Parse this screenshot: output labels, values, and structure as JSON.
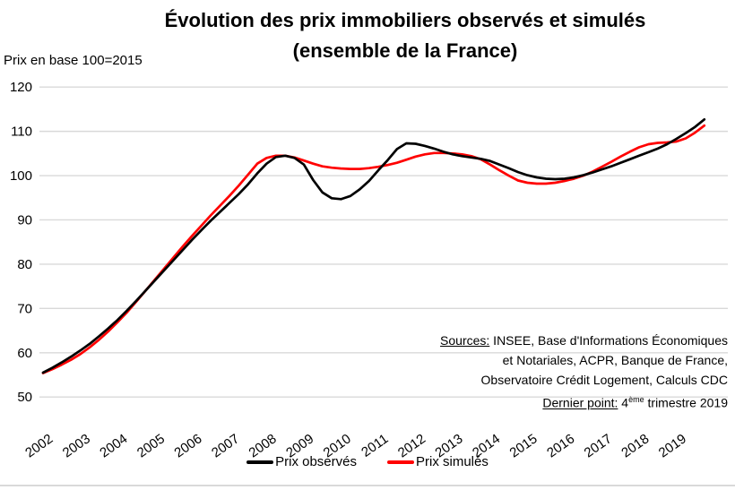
{
  "title": {
    "line1": "Évolution des prix immobiliers observés et simulés",
    "line2": "(ensemble de la France)"
  },
  "y_axis_note": "Prix en base 100=2015",
  "sources": {
    "label": "Sources:",
    "line1_rest": " INSEE, Base d'Informations Économiques",
    "line2": "et Notariales, ACPR, Banque de France,",
    "line3": "Observatoire Crédit Logement, Calculs CDC",
    "dernier_label": "Dernier point:",
    "dernier_num": " 4",
    "dernier_sup": "ème",
    "dernier_rest": " trimestre 2019"
  },
  "legend": [
    {
      "label": "Prix observés",
      "color": "#000000"
    },
    {
      "label": "Prix simulés",
      "color": "#FF0000"
    }
  ],
  "colors": {
    "grid": "#D9D9D9",
    "background": "#FFFFFF",
    "bottom_strip": "#D9D9D9",
    "observed": "#000000",
    "simulated": "#FF0000"
  },
  "chart_data": {
    "type": "line",
    "title": "Évolution des prix immobiliers observés et simulés (ensemble de la France)",
    "ylabel": "Prix en base 100=2015",
    "xlabel": "",
    "grid": "horizontal",
    "legend_position": "bottom",
    "ylim": [
      50,
      120
    ],
    "y_ticks": [
      50,
      60,
      70,
      80,
      90,
      100,
      110,
      120
    ],
    "x_tick_labels": [
      "2002",
      "2003",
      "2004",
      "2005",
      "2006",
      "2007",
      "2008",
      "2009",
      "2010",
      "2011",
      "2012",
      "2013",
      "2014",
      "2015",
      "2016",
      "2017",
      "2018",
      "2019"
    ],
    "x_frequency": "quarterly",
    "x_start": "2002-Q1",
    "x_end": "2019-Q4",
    "series": [
      {
        "name": "Prix observés",
        "color": "#000000",
        "values": [
          55.5,
          56.6,
          57.8,
          59.1,
          60.5,
          62.0,
          63.7,
          65.5,
          67.4,
          69.5,
          71.7,
          74.0,
          76.3,
          78.6,
          80.9,
          83.2,
          85.5,
          87.7,
          89.8,
          91.8,
          93.8,
          95.8,
          98.0,
          100.5,
          102.7,
          104.2,
          104.5,
          104.0,
          102.5,
          99.0,
          96.2,
          94.9,
          94.7,
          95.4,
          96.9,
          98.8,
          101.2,
          103.5,
          106.0,
          107.3,
          107.2,
          106.7,
          106.1,
          105.4,
          104.8,
          104.4,
          104.1,
          103.8,
          103.3,
          102.5,
          101.7,
          100.8,
          100.1,
          99.6,
          99.3,
          99.2,
          99.3,
          99.6,
          100.1,
          100.7,
          101.4,
          102.1,
          102.9,
          103.7,
          104.5,
          105.3,
          106.1,
          107.1,
          108.3,
          109.6,
          111.0,
          112.7
        ]
      },
      {
        "name": "Prix simulés",
        "color": "#FF0000",
        "values": [
          55.4,
          56.3,
          57.3,
          58.4,
          59.7,
          61.2,
          62.9,
          64.8,
          66.9,
          69.1,
          71.5,
          74.0,
          76.5,
          79.0,
          81.5,
          84.0,
          86.4,
          88.7,
          91.0,
          93.2,
          95.4,
          97.7,
          100.2,
          102.7,
          104.0,
          104.5,
          104.5,
          104.1,
          103.4,
          102.7,
          102.1,
          101.8,
          101.6,
          101.5,
          101.5,
          101.7,
          102.0,
          102.4,
          102.9,
          103.6,
          104.3,
          104.8,
          105.1,
          105.1,
          105.0,
          104.8,
          104.4,
          103.7,
          102.5,
          101.2,
          100.0,
          98.9,
          98.4,
          98.2,
          98.2,
          98.4,
          98.8,
          99.3,
          100.0,
          100.9,
          102.0,
          103.1,
          104.3,
          105.4,
          106.4,
          107.1,
          107.4,
          107.5,
          107.7,
          108.4,
          109.7,
          111.3
        ]
      }
    ]
  }
}
